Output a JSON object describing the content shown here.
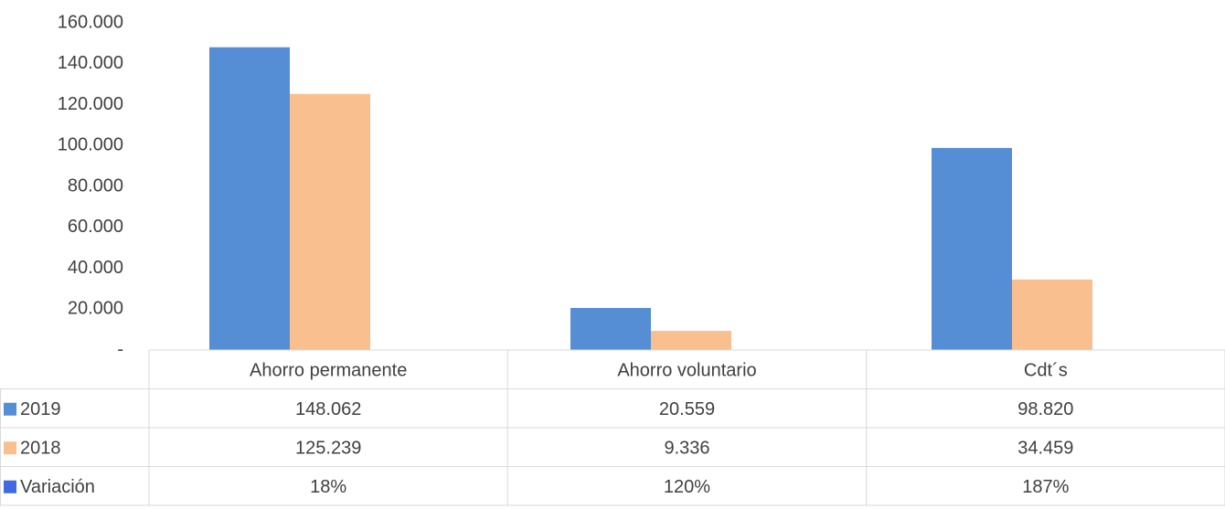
{
  "chart_data": {
    "type": "bar",
    "categories": [
      "Ahorro permanente",
      "Ahorro voluntario",
      "Cdt´s"
    ],
    "series": [
      {
        "name": "2019",
        "color": "#558ed5",
        "values": [
          148062,
          20559,
          98820
        ],
        "value_labels": [
          "148.062",
          "20.559",
          "98.820"
        ]
      },
      {
        "name": "2018",
        "color": "#f9bf8f",
        "values": [
          125239,
          9336,
          34459
        ],
        "value_labels": [
          "125.239",
          "9.336",
          "34.459"
        ]
      },
      {
        "name": "Variación",
        "color": "#4169e1",
        "values": [
          18,
          120,
          187
        ],
        "value_labels": [
          "18%",
          "120%",
          "187%"
        ]
      }
    ],
    "ylim": [
      0,
      160000
    ],
    "yticks": [
      {
        "value": 0,
        "label": "-"
      },
      {
        "value": 20000,
        "label": "20.000"
      },
      {
        "value": 40000,
        "label": "40.000"
      },
      {
        "value": 60000,
        "label": "60.000"
      },
      {
        "value": 80000,
        "label": "80.000"
      },
      {
        "value": 100000,
        "label": "100.000"
      },
      {
        "value": 120000,
        "label": "120.000"
      },
      {
        "value": 140000,
        "label": "140.000"
      },
      {
        "value": 160000,
        "label": "160.000"
      }
    ],
    "data_table": true
  }
}
